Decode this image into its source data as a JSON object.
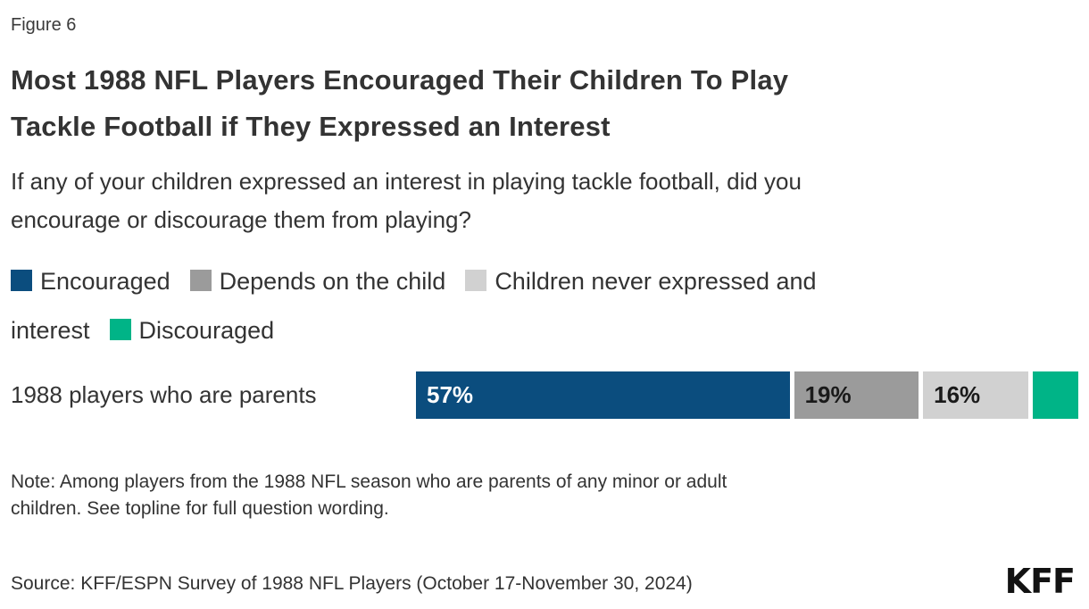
{
  "figure_label": "Figure 6",
  "title": "Most 1988 NFL Players Encouraged Their Children To Play Tackle Football if They Expressed an Interest",
  "subtitle": "If any of your children expressed an interest in playing tackle football, did you encourage or discourage them from playing?",
  "legend": [
    {
      "label": "Encouraged",
      "color": "#0b4d7e"
    },
    {
      "label": "Depends on the child",
      "color": "#9b9b9b"
    },
    {
      "label": "Children never expressed and interest",
      "color": "#d1d1d1"
    },
    {
      "label": "Discouraged",
      "color": "#00b487"
    }
  ],
  "chart_data": {
    "type": "bar",
    "orientation": "horizontal-stacked",
    "title": "Most 1988 NFL Players Encouraged Their Children To Play Tackle Football if They Expressed an Interest",
    "question": "If any of your children expressed an interest in playing tackle football, did you encourage or discourage them from playing?",
    "categories": [
      "1988 players who are parents"
    ],
    "series": [
      {
        "name": "Encouraged",
        "value": 57,
        "display": "57%",
        "color": "#0b4d7e",
        "label_color": "light"
      },
      {
        "name": "Depends on the child",
        "value": 19,
        "display": "19%",
        "color": "#9b9b9b",
        "label_color": "dark"
      },
      {
        "name": "Children never expressed and interest",
        "value": 16,
        "display": "16%",
        "color": "#d1d1d1",
        "label_color": "dark"
      },
      {
        "name": "Discouraged",
        "value": 7,
        "display": "",
        "label_note": "unlabeled in chart, width implies ~7%",
        "color": "#00b487",
        "label_color": "dark"
      }
    ],
    "xlim": [
      0,
      100
    ],
    "grid": false,
    "legend_position": "top"
  },
  "note": "Note: Among players from the 1988 NFL season who are parents of any minor or adult children. See topline for full question wording.",
  "source": "Source: KFF/ESPN Survey of 1988 NFL Players (October 17-November 30, 2024)",
  "logo_text": "KFF"
}
